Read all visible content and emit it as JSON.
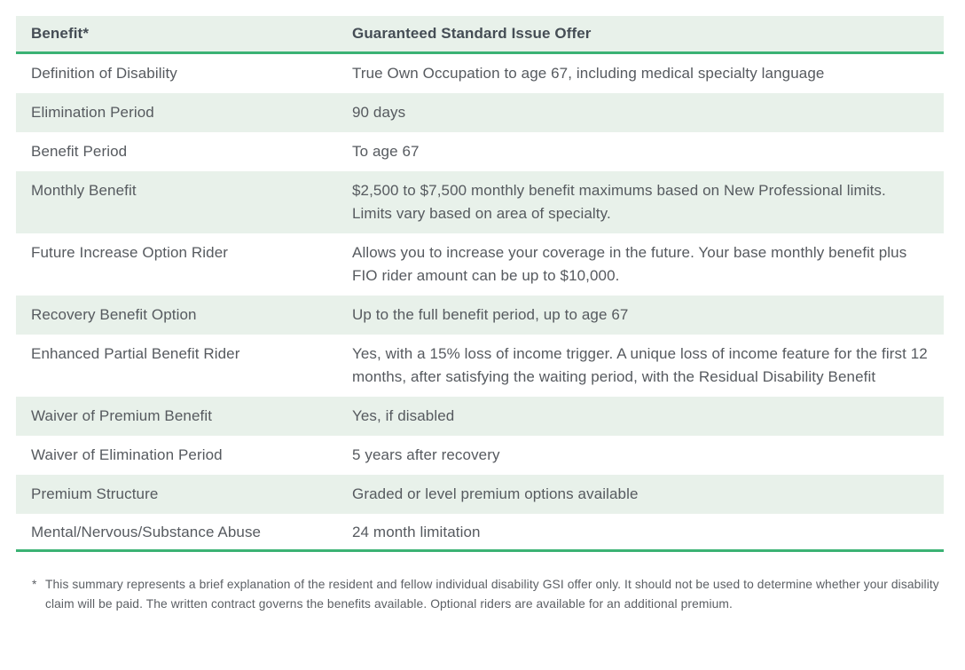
{
  "colors": {
    "row_highlight": "#e8f1ea",
    "accent_line": "#3bb274",
    "body_text": "#565a5f",
    "header_text": "#454d55"
  },
  "table": {
    "columns": [
      {
        "label": "Benefit*"
      },
      {
        "label": "Guaranteed Standard Issue Offer"
      }
    ],
    "rows": [
      {
        "benefit": "Definition of Disability",
        "offer": "True Own Occupation to age 67, including medical specialty language"
      },
      {
        "benefit": "Elimination Period",
        "offer": "90 days"
      },
      {
        "benefit": "Benefit Period",
        "offer": "To age 67"
      },
      {
        "benefit": "Monthly Benefit",
        "offer": "$2,500 to $7,500 monthly benefit maximums based on New Professional limits. Limits vary based on area of specialty."
      },
      {
        "benefit": "Future Increase Option Rider",
        "offer": "Allows you to increase your coverage in the future. Your base monthly benefit plus FIO rider amount can be up to $10,000."
      },
      {
        "benefit": "Recovery Benefit Option",
        "offer": "Up to the full benefit period, up to age 67"
      },
      {
        "benefit": "Enhanced Partial Benefit Rider",
        "offer": "Yes, with a 15% loss of income trigger. A unique loss of income feature for the first 12 months, after satisfying the waiting period, with the Residual Disability Benefit"
      },
      {
        "benefit": "Waiver of Premium Benefit",
        "offer": "Yes, if disabled"
      },
      {
        "benefit": "Waiver of Elimination Period",
        "offer": "5 years after recovery"
      },
      {
        "benefit": "Premium Structure",
        "offer": "Graded or level premium options available"
      },
      {
        "benefit": "Mental/Nervous/Substance Abuse",
        "offer": "24 month limitation"
      }
    ]
  },
  "footnote": {
    "marker": "*",
    "text": "This summary represents a brief explanation of the resident and fellow individual disability GSI offer only. It should not be used to determine whether your disability claim will be paid. The written contract governs the benefits available. Optional riders are available for an additional premium."
  }
}
